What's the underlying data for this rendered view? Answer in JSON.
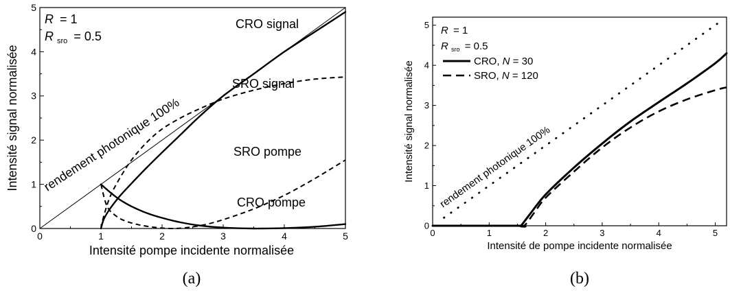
{
  "chart_data": [
    {
      "type": "line",
      "panel_label": "(a)",
      "xlabel": "Intensité pompe incidente normalisée",
      "ylabel": "Intensité signal normalisée",
      "xlim": [
        0,
        5
      ],
      "ylim": [
        0,
        5
      ],
      "x_ticks": [
        "0",
        "1",
        "2",
        "3",
        "4",
        "5"
      ],
      "y_ticks": [
        "0",
        "1",
        "2",
        "3",
        "4",
        "5"
      ],
      "params": {
        "R_label": "R",
        "R_value": "= 1",
        "Rsro_main": "R",
        "Rsro_sub": "sro",
        "Rsro_value": "= 0.5"
      },
      "annotations": {
        "cro_signal": "CRO signal",
        "sro_signal": "SRO signal",
        "sro_pompe": "SRO pompe",
        "cro_pompe": "CRO pompe",
        "rendement": "rendement photonique 100%"
      },
      "series": [
        {
          "id": "rendement",
          "style": "thin",
          "x": [
            0,
            5
          ],
          "y": [
            0,
            5
          ]
        },
        {
          "id": "cro_signal",
          "style": "solid",
          "x": [
            1.0,
            1.05,
            1.15,
            1.3,
            1.5,
            1.75,
            2.0,
            2.3,
            2.6,
            3.0,
            3.5,
            4.0,
            4.5,
            5.0
          ],
          "y": [
            0.0,
            0.22,
            0.45,
            0.72,
            1.02,
            1.38,
            1.72,
            2.12,
            2.52,
            3.0,
            3.5,
            4.0,
            4.45,
            4.9
          ]
        },
        {
          "id": "sro_signal",
          "style": "dashed",
          "x": [
            1.0,
            1.05,
            1.15,
            1.3,
            1.5,
            1.75,
            2.0,
            2.3,
            2.6,
            3.0,
            3.5,
            4.0,
            4.5,
            5.0
          ],
          "y": [
            0.0,
            0.3,
            0.72,
            1.12,
            1.55,
            1.95,
            2.25,
            2.5,
            2.7,
            2.93,
            3.13,
            3.28,
            3.38,
            3.43
          ]
        },
        {
          "id": "cro_pompe",
          "style": "solid",
          "x": [
            1.0,
            1.15,
            1.3,
            1.5,
            1.75,
            2.0,
            2.3,
            2.6,
            3.0,
            3.5,
            4.0,
            4.5,
            5.0
          ],
          "y": [
            1.0,
            0.82,
            0.66,
            0.5,
            0.35,
            0.24,
            0.14,
            0.07,
            0.02,
            0.0,
            0.01,
            0.04,
            0.1
          ]
        },
        {
          "id": "sro_pompe",
          "style": "dashed",
          "x": [
            1.0,
            1.1,
            1.25,
            1.4,
            1.6,
            1.8,
            2.0,
            2.2,
            2.4,
            2.6,
            2.8,
            3.0,
            3.3,
            3.6,
            4.0,
            4.4,
            4.8,
            5.0
          ],
          "y": [
            1.0,
            0.5,
            0.28,
            0.17,
            0.09,
            0.04,
            0.01,
            0.0,
            0.02,
            0.06,
            0.12,
            0.2,
            0.34,
            0.5,
            0.75,
            1.05,
            1.38,
            1.55
          ]
        }
      ]
    },
    {
      "type": "line",
      "panel_label": "(b)",
      "xlabel": "Intensité de pompe incidente normalisée",
      "ylabel": "Intensité signal normalisée",
      "xlim": [
        0,
        5.2
      ],
      "ylim": [
        0,
        5.2
      ],
      "x_ticks": [
        "0",
        "1",
        "2",
        "3",
        "4",
        "5"
      ],
      "y_ticks": [
        "0",
        "1",
        "2",
        "3",
        "4",
        "5"
      ],
      "params": {
        "R_label": "R",
        "R_value": "= 1",
        "Rsro_main": "R",
        "Rsro_sub": "sro",
        "Rsro_value": "= 0.5"
      },
      "legend": [
        {
          "prefix": "CRO, ",
          "var": "N",
          "suffix": " = 30",
          "style": "solid"
        },
        {
          "prefix": "SRO, ",
          "var": "N",
          "suffix": " = 120",
          "style": "dashed"
        }
      ],
      "annotations": {
        "rendement": "rendement photonique 100%"
      },
      "series": [
        {
          "id": "rendement",
          "style": "dotted",
          "x": [
            0.2,
            5.1
          ],
          "y": [
            0.2,
            5.1
          ]
        },
        {
          "id": "cro",
          "name": "CRO, N = 30",
          "style": "solid",
          "x": [
            0,
            1.5,
            1.56,
            1.7,
            2.0,
            2.5,
            3.0,
            3.5,
            4.0,
            4.5,
            5.0,
            5.2
          ],
          "y": [
            0,
            0,
            0.0,
            0.25,
            0.78,
            1.45,
            2.05,
            2.6,
            3.08,
            3.55,
            4.05,
            4.3
          ]
        },
        {
          "id": "sro",
          "name": "SRO, N = 120",
          "style": "dashed",
          "x": [
            0,
            1.5,
            1.62,
            1.8,
            2.0,
            2.5,
            3.0,
            3.5,
            4.0,
            4.5,
            5.0,
            5.2
          ],
          "y": [
            0,
            0,
            0.0,
            0.33,
            0.7,
            1.35,
            1.95,
            2.45,
            2.85,
            3.15,
            3.38,
            3.45
          ]
        }
      ]
    }
  ]
}
